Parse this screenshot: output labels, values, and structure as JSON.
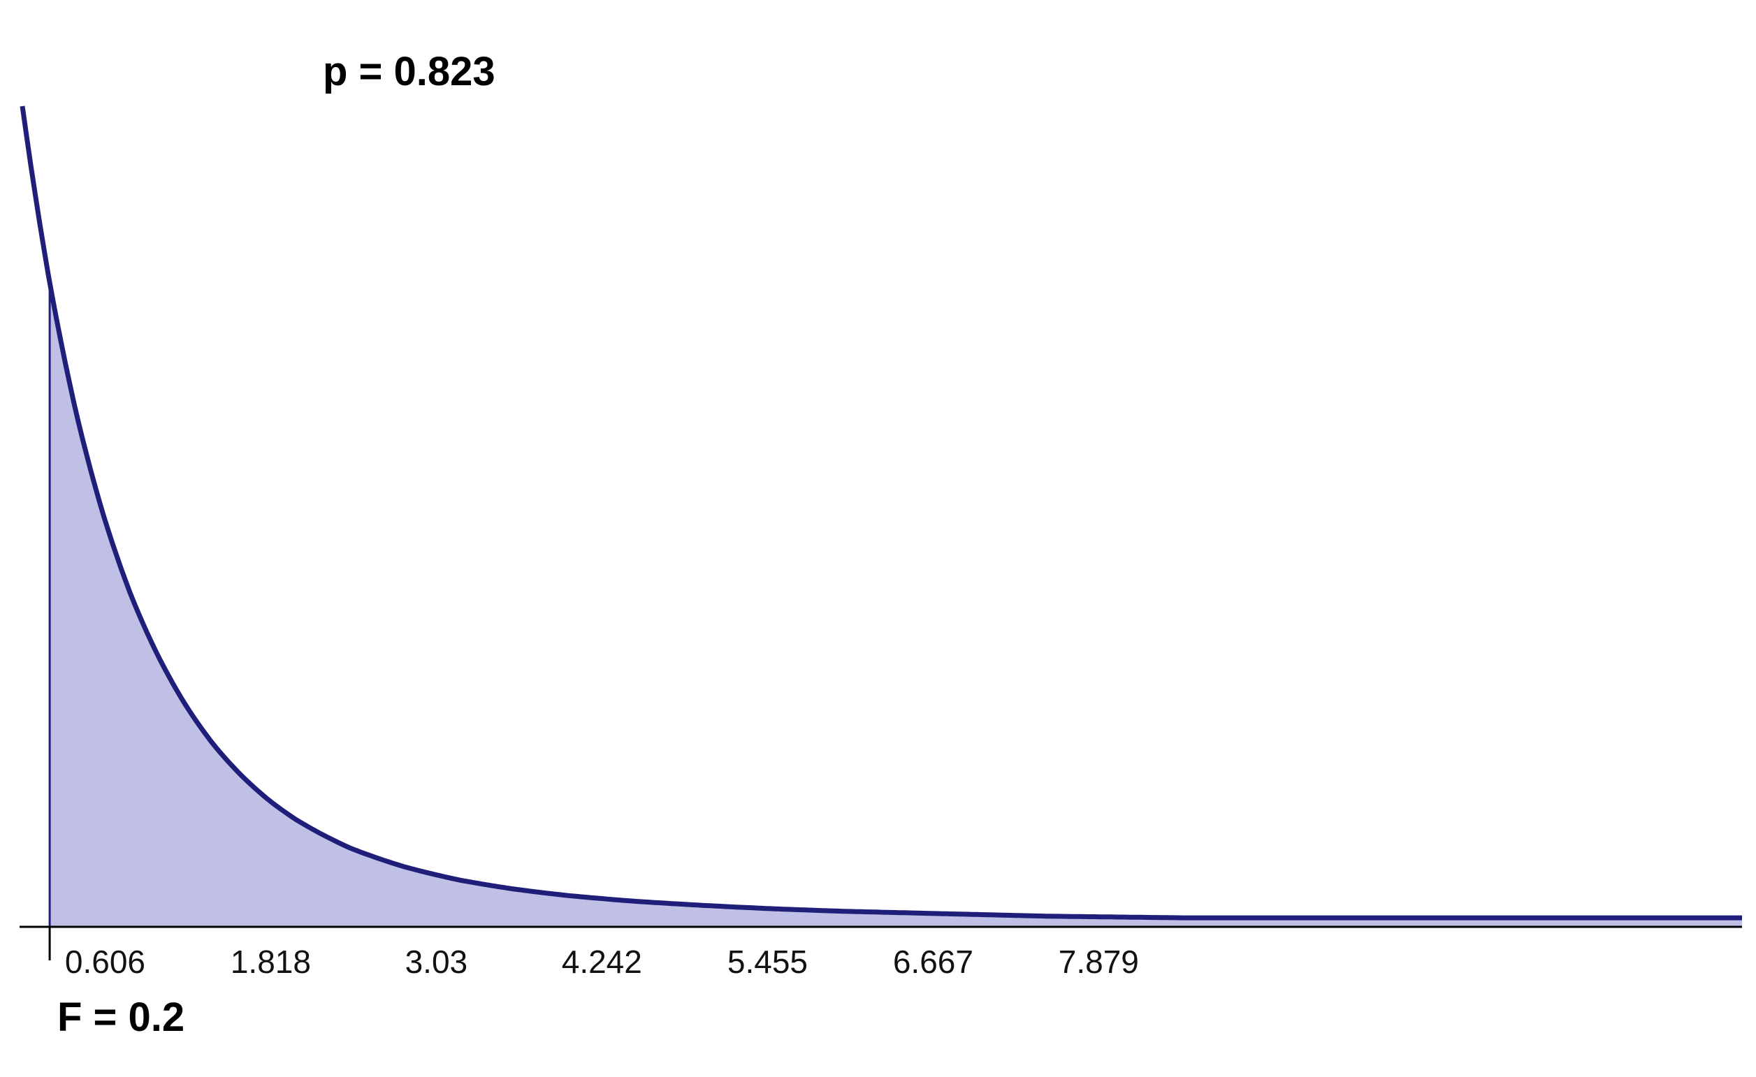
{
  "chart_data": {
    "type": "area",
    "distribution": "F",
    "x_ticks": [
      0.606,
      1.818,
      3.03,
      4.242,
      5.455,
      6.667,
      7.879
    ],
    "x_tick_labels": [
      "0.606",
      "1.818",
      "3.03",
      "4.242",
      "5.455",
      "6.667",
      "7.879"
    ],
    "xlim": [
      0,
      8.5
    ],
    "shaded_region": [
      0.2,
      8.5
    ],
    "critical_value": 0.2,
    "critical_label": "F = 0.2",
    "p_value": 0.823,
    "p_label": "p = 0.823",
    "curve": {
      "x": [
        0.0,
        0.2,
        0.4,
        0.6,
        0.8,
        1.0,
        1.2,
        1.4,
        1.6,
        1.8,
        2.0,
        2.4,
        2.8,
        3.2,
        3.6,
        4.0,
        4.5,
        5.0,
        5.5,
        6.0,
        6.5,
        7.0,
        7.5,
        8.0,
        8.5
      ],
      "y": [
        1.0,
        0.785,
        0.622,
        0.498,
        0.402,
        0.328,
        0.269,
        0.222,
        0.185,
        0.155,
        0.131,
        0.096,
        0.073,
        0.057,
        0.046,
        0.038,
        0.031,
        0.026,
        0.022,
        0.019,
        0.017,
        0.015,
        0.013,
        0.012,
        0.011
      ]
    },
    "colors": {
      "curve": "#1f1f7a",
      "fill": "#c0c0e6",
      "axis": "#000000"
    },
    "grid": false,
    "legend": "none"
  }
}
